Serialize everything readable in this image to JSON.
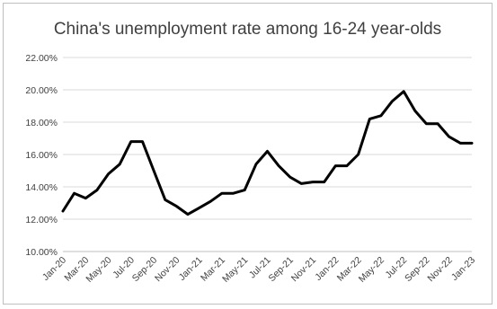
{
  "chart_data": {
    "type": "line",
    "title": "China's unemployment rate among 16-24 year-olds",
    "xlabel": "",
    "ylabel": "",
    "ylim": [
      10,
      22
    ],
    "yticks": [
      10,
      12,
      14,
      16,
      18,
      20,
      22
    ],
    "ytick_labels": [
      "10.00%",
      "12.00%",
      "14.00%",
      "16.00%",
      "18.00%",
      "20.00%",
      "22.00%"
    ],
    "x": [
      "Jan-20",
      "Feb-20",
      "Mar-20",
      "Apr-20",
      "May-20",
      "Jun-20",
      "Jul-20",
      "Aug-20",
      "Sep-20",
      "Oct-20",
      "Nov-20",
      "Dec-20",
      "Jan-21",
      "Feb-21",
      "Mar-21",
      "Apr-21",
      "May-21",
      "Jun-21",
      "Jul-21",
      "Aug-21",
      "Sep-21",
      "Oct-21",
      "Nov-21",
      "Dec-21",
      "Jan-22",
      "Feb-22",
      "Mar-22",
      "Apr-22",
      "May-22",
      "Jun-22",
      "Jul-22",
      "Aug-22",
      "Sep-22",
      "Oct-22",
      "Nov-22",
      "Dec-22",
      "Jan-23"
    ],
    "xtick_labels": [
      "Jan-20",
      "Mar-20",
      "May-20",
      "Jul-20",
      "Sep-20",
      "Nov-20",
      "Jan-21",
      "Mar-21",
      "May-21",
      "Jul-21",
      "Sep-21",
      "Nov-21",
      "Jan-22",
      "Mar-22",
      "May-22",
      "Jul-22",
      "Sep-22",
      "Nov-22",
      "Jan-23"
    ],
    "series": [
      {
        "values": [
          12.5,
          13.6,
          13.3,
          13.8,
          14.8,
          15.4,
          16.8,
          16.8,
          15.0,
          13.2,
          12.8,
          12.3,
          12.7,
          13.1,
          13.6,
          13.6,
          13.8,
          15.4,
          16.2,
          15.3,
          14.6,
          14.2,
          14.3,
          14.3,
          15.3,
          15.3,
          16.0,
          18.2,
          18.4,
          19.3,
          19.9,
          18.7,
          17.9,
          17.9,
          17.1,
          16.7,
          16.7
        ]
      }
    ],
    "grid": true,
    "colors": {
      "line": "#000000",
      "grid": "#d9d9d9"
    }
  }
}
